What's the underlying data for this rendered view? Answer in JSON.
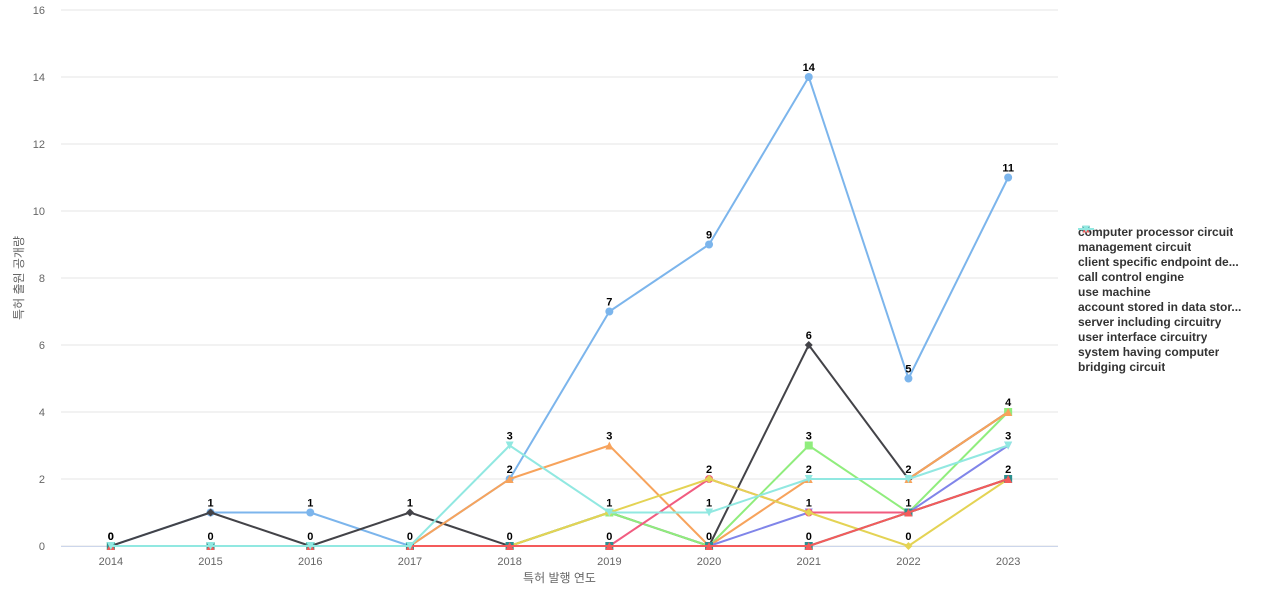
{
  "chart_data": {
    "type": "line",
    "title": "",
    "xlabel": "특허 발행 연도",
    "ylabel": "특허 출원 공개량",
    "x": [
      "2014",
      "2015",
      "2016",
      "2017",
      "2018",
      "2019",
      "2020",
      "2021",
      "2022",
      "2023"
    ],
    "ylim": [
      0,
      16
    ],
    "yticks": [
      0,
      2,
      4,
      6,
      8,
      10,
      12,
      14,
      16
    ],
    "grid": true,
    "legend_position": "right",
    "series": [
      {
        "name": "computer processor circuit",
        "color": "#7cb5ec",
        "marker": "circle",
        "values": [
          0,
          1,
          1,
          0,
          2,
          7,
          9,
          14,
          5,
          11
        ]
      },
      {
        "name": "management circuit",
        "color": "#434348",
        "marker": "diamond",
        "values": [
          0,
          1,
          0,
          1,
          0,
          1,
          0,
          6,
          2,
          4
        ]
      },
      {
        "name": "client specific endpoint de...",
        "color": "#90ed7d",
        "marker": "square",
        "values": [
          0,
          0,
          0,
          0,
          0,
          1,
          0,
          3,
          1,
          4
        ]
      },
      {
        "name": "call control engine",
        "color": "#f7a35c",
        "marker": "triangle",
        "values": [
          0,
          0,
          0,
          0,
          2,
          3,
          0,
          2,
          2,
          4
        ]
      },
      {
        "name": "use machine",
        "color": "#8085e9",
        "marker": "triangle-down",
        "values": [
          0,
          0,
          0,
          0,
          0,
          0,
          0,
          1,
          1,
          3
        ]
      },
      {
        "name": "account stored in data stor...",
        "color": "#f15c80",
        "marker": "circle",
        "values": [
          0,
          0,
          0,
          0,
          0,
          0,
          2,
          1,
          1,
          2
        ]
      },
      {
        "name": "server including circuitry",
        "color": "#e4d354",
        "marker": "diamond",
        "values": [
          0,
          0,
          0,
          0,
          0,
          1,
          2,
          1,
          0,
          2
        ]
      },
      {
        "name": "user interface circuitry",
        "color": "#2b908f",
        "marker": "square",
        "values": [
          0,
          0,
          0,
          0,
          0,
          0,
          0,
          0,
          1,
          2
        ]
      },
      {
        "name": "system having computer",
        "color": "#f45b5b",
        "marker": "triangle",
        "values": [
          0,
          0,
          0,
          0,
          0,
          0,
          0,
          0,
          1,
          2
        ]
      },
      {
        "name": "bridging circuit",
        "color": "#91e8e1",
        "marker": "triangle-down",
        "values": [
          0,
          0,
          0,
          0,
          3,
          1,
          1,
          2,
          2,
          3
        ]
      }
    ],
    "data_labels": [
      {
        "x": "2014",
        "value": 0
      },
      {
        "x": "2014",
        "value": 0
      },
      {
        "x": "2015",
        "value": 1
      },
      {
        "x": "2015",
        "value": 0
      },
      {
        "x": "2016",
        "value": 1
      },
      {
        "x": "2016",
        "value": 0
      },
      {
        "x": "2017",
        "value": 1
      },
      {
        "x": "2017",
        "value": 0
      },
      {
        "x": "2018",
        "value": 3
      },
      {
        "x": "2018",
        "value": 2
      },
      {
        "x": "2018",
        "value": 0
      },
      {
        "x": "2019",
        "value": 7
      },
      {
        "x": "2019",
        "value": 3
      },
      {
        "x": "2019",
        "value": 1
      },
      {
        "x": "2019",
        "value": 0
      },
      {
        "x": "2020",
        "value": 9
      },
      {
        "x": "2020",
        "value": 2
      },
      {
        "x": "2020",
        "value": 1
      },
      {
        "x": "2020",
        "value": 0
      },
      {
        "x": "2021",
        "value": 14
      },
      {
        "x": "2021",
        "value": 6
      },
      {
        "x": "2021",
        "value": 3
      },
      {
        "x": "2021",
        "value": 2
      },
      {
        "x": "2021",
        "value": 1
      },
      {
        "x": "2021",
        "value": 0
      },
      {
        "x": "2022",
        "value": 5
      },
      {
        "x": "2022",
        "value": 2
      },
      {
        "x": "2022",
        "value": 1
      },
      {
        "x": "2022",
        "value": 0
      },
      {
        "x": "2023",
        "value": 11
      },
      {
        "x": "2023",
        "value": 4
      },
      {
        "x": "2023",
        "value": 3
      },
      {
        "x": "2023",
        "value": 2
      }
    ]
  }
}
